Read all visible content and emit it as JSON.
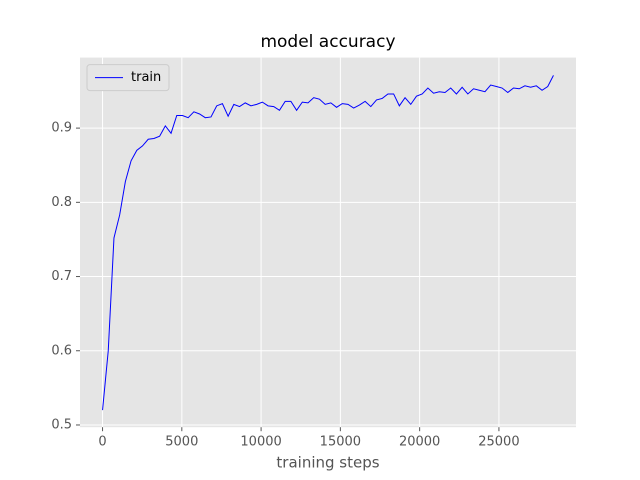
{
  "chart_data": {
    "type": "line",
    "title": "model accuracy",
    "x_label": "training steps",
    "x": [
      0,
      360,
      720,
      1080,
      1440,
      1800,
      2160,
      2520,
      2880,
      3240,
      3600,
      3960,
      4320,
      4680,
      5040,
      5400,
      5760,
      6120,
      6480,
      6840,
      7200,
      7560,
      7920,
      8280,
      8640,
      9000,
      9360,
      9720,
      10080,
      10440,
      10800,
      11160,
      11520,
      11880,
      12240,
      12600,
      12960,
      13320,
      13680,
      14040,
      14400,
      14760,
      15120,
      15480,
      15840,
      16200,
      16560,
      16920,
      17280,
      17640,
      18000,
      18360,
      18720,
      19080,
      19440,
      19800,
      20160,
      20520,
      20880,
      21240,
      21600,
      21960,
      22320,
      22680,
      23040,
      23400,
      23760,
      24120,
      24480,
      24840,
      25200,
      25560,
      25920,
      26280,
      26640,
      27000,
      27360,
      27720,
      28080,
      28440
    ],
    "series": [
      {
        "name": "train",
        "color": "#0000ff",
        "values": [
          0.52,
          0.6,
          0.752,
          0.783,
          0.828,
          0.856,
          0.87,
          0.876,
          0.885,
          0.886,
          0.889,
          0.903,
          0.893,
          0.917,
          0.917,
          0.914,
          0.922,
          0.919,
          0.914,
          0.915,
          0.93,
          0.933,
          0.916,
          0.932,
          0.929,
          0.934,
          0.93,
          0.932,
          0.935,
          0.93,
          0.929,
          0.924,
          0.936,
          0.936,
          0.924,
          0.935,
          0.934,
          0.941,
          0.939,
          0.932,
          0.934,
          0.928,
          0.933,
          0.932,
          0.927,
          0.931,
          0.936,
          0.929,
          0.938,
          0.94,
          0.946,
          0.946,
          0.93,
          0.941,
          0.932,
          0.943,
          0.946,
          0.954,
          0.947,
          0.949,
          0.948,
          0.954,
          0.946,
          0.955,
          0.946,
          0.953,
          0.951,
          0.949,
          0.958,
          0.956,
          0.954,
          0.948,
          0.954,
          0.953,
          0.957,
          0.955,
          0.957,
          0.951,
          0.956,
          0.971
        ]
      }
    ],
    "xlim": [
      -1422,
      29862
    ],
    "xticks": [
      0,
      5000,
      10000,
      15000,
      20000,
      25000
    ],
    "ylim": [
      0.497,
      0.995
    ],
    "yticks": [
      0.5,
      0.6,
      0.7,
      0.8,
      0.9
    ],
    "grid": true,
    "legend": "upper-left"
  }
}
